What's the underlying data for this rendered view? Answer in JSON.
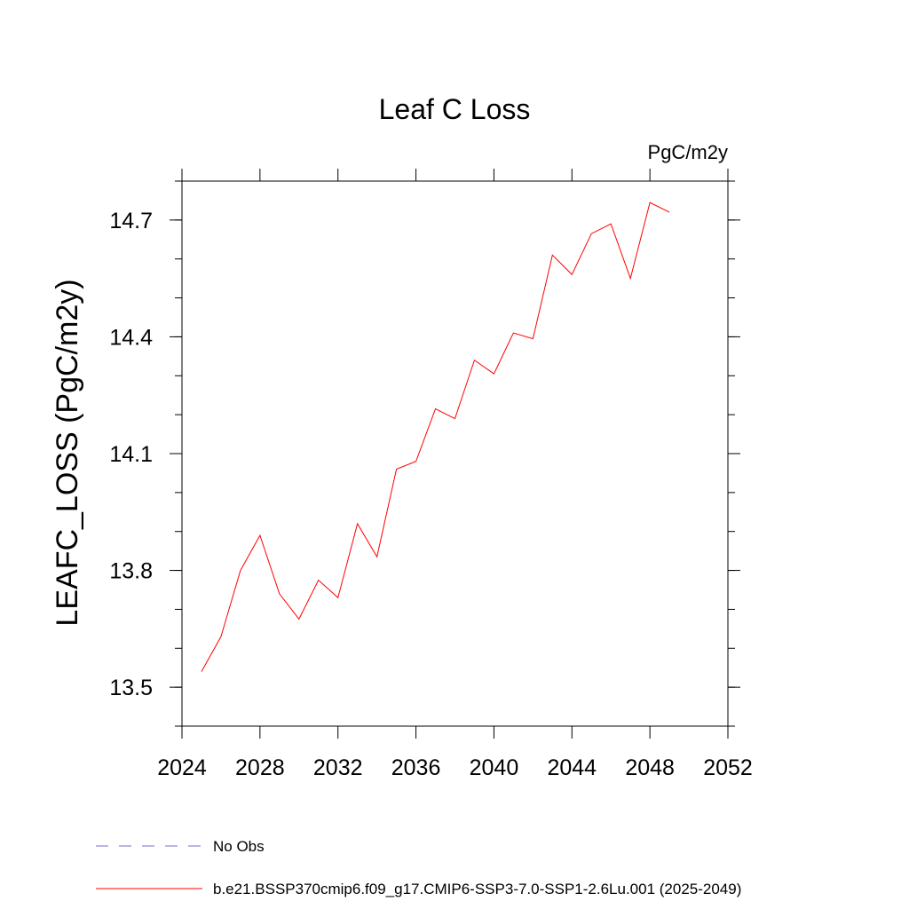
{
  "chart_data": {
    "type": "line",
    "title": "Leaf C Loss",
    "units_label": "PgC/m2y",
    "ylabel": "LEAFC_LOSS  (PgC/m2y)",
    "xlabel": "",
    "xlim": [
      2024,
      2052
    ],
    "ylim": [
      13.4,
      14.8
    ],
    "x_ticks": [
      "2024",
      "2028",
      "2032",
      "2036",
      "2040",
      "2044",
      "2048",
      "2052"
    ],
    "y_ticks": [
      "13.5",
      "13.8",
      "14.1",
      "14.4",
      "14.7"
    ],
    "series": [
      {
        "name": "b.e21.BSSP370cmip6.f09_g17.CMIP6-SSP3-7.0-SSP1-2.6Lu.001 (2025-2049)",
        "color": "#ff0000",
        "x": [
          2025,
          2026,
          2027,
          2028,
          2029,
          2030,
          2031,
          2032,
          2033,
          2034,
          2035,
          2036,
          2037,
          2038,
          2039,
          2040,
          2041,
          2042,
          2043,
          2044,
          2045,
          2046,
          2047,
          2048,
          2049
        ],
        "y": [
          13.54,
          13.63,
          13.8,
          13.89,
          13.74,
          13.675,
          13.775,
          13.73,
          13.92,
          13.835,
          14.06,
          14.08,
          14.215,
          14.19,
          14.34,
          14.305,
          14.41,
          14.395,
          14.61,
          14.56,
          14.665,
          14.69,
          14.55,
          14.745,
          14.72
        ]
      }
    ],
    "legend": [
      {
        "label": "No Obs",
        "color": "#7b68c8",
        "style": "dashed"
      },
      {
        "label": "b.e21.BSSP370cmip6.f09_g17.CMIP6-SSP3-7.0-SSP1-2.6Lu.001 (2025-2049)",
        "color": "#ff0000",
        "style": "solid"
      }
    ],
    "legend_position": "bottom",
    "grid": false
  }
}
